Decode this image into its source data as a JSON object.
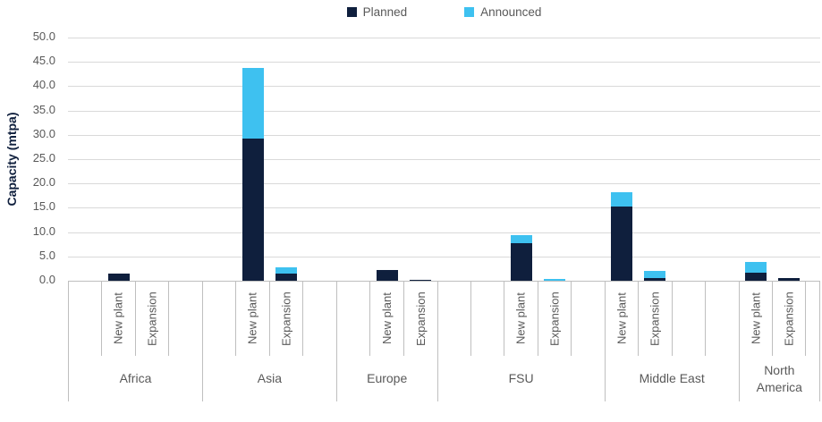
{
  "chart_data": {
    "type": "bar",
    "stacked": true,
    "title": "",
    "xlabel": "",
    "ylabel": "Capacity (mtpa)",
    "ylim": [
      0,
      50
    ],
    "ytick_step": 5,
    "grid": true,
    "legend_position": "top-center",
    "legend": [
      "Planned",
      "Announced"
    ],
    "colors": {
      "Planned": "#0F1F3D",
      "Announced": "#3EC1F0"
    },
    "yticks": [
      "50.0",
      "45.0",
      "40.0",
      "35.0",
      "30.0",
      "25.0",
      "20.0",
      "15.0",
      "10.0",
      "5.0",
      "0.0"
    ],
    "categories": [
      "Africa - New plant",
      "Africa - Expansion",
      "Asia - New plant",
      "Asia - Expansion",
      "Europe - New plant",
      "Europe - Expansion",
      "FSU - New plant",
      "FSU - Expansion",
      "Middle East - New plant",
      "Middle East - Expansion",
      "North America - New plant",
      "North America - Expansion"
    ],
    "series": [
      {
        "name": "Planned",
        "values": [
          1.5,
          0,
          29.3,
          1.5,
          2.2,
          0.2,
          7.8,
          0,
          15.3,
          0.6,
          1.7,
          0.5
        ]
      },
      {
        "name": "Announced",
        "values": [
          0,
          0,
          14.4,
          1.3,
          0,
          0,
          1.6,
          0.3,
          2.9,
          1.5,
          2.1,
          0
        ]
      }
    ],
    "groups": [
      {
        "region": "Africa",
        "slots": [
          "",
          "New plant",
          "Expansion",
          ""
        ]
      },
      {
        "region": "Asia",
        "slots": [
          "",
          "New plant",
          "Expansion",
          ""
        ]
      },
      {
        "region": "Europe",
        "slots": [
          "",
          "New plant",
          "Expansion"
        ]
      },
      {
        "region": "FSU",
        "slots": [
          "",
          "",
          "New plant",
          "Expansion",
          ""
        ]
      },
      {
        "region": "Middle East",
        "slots": [
          "New plant",
          "Expansion",
          "",
          ""
        ]
      },
      {
        "region": "North America",
        "slots": [
          "New plant",
          "Expansion"
        ],
        "tail": 0.4
      }
    ]
  }
}
